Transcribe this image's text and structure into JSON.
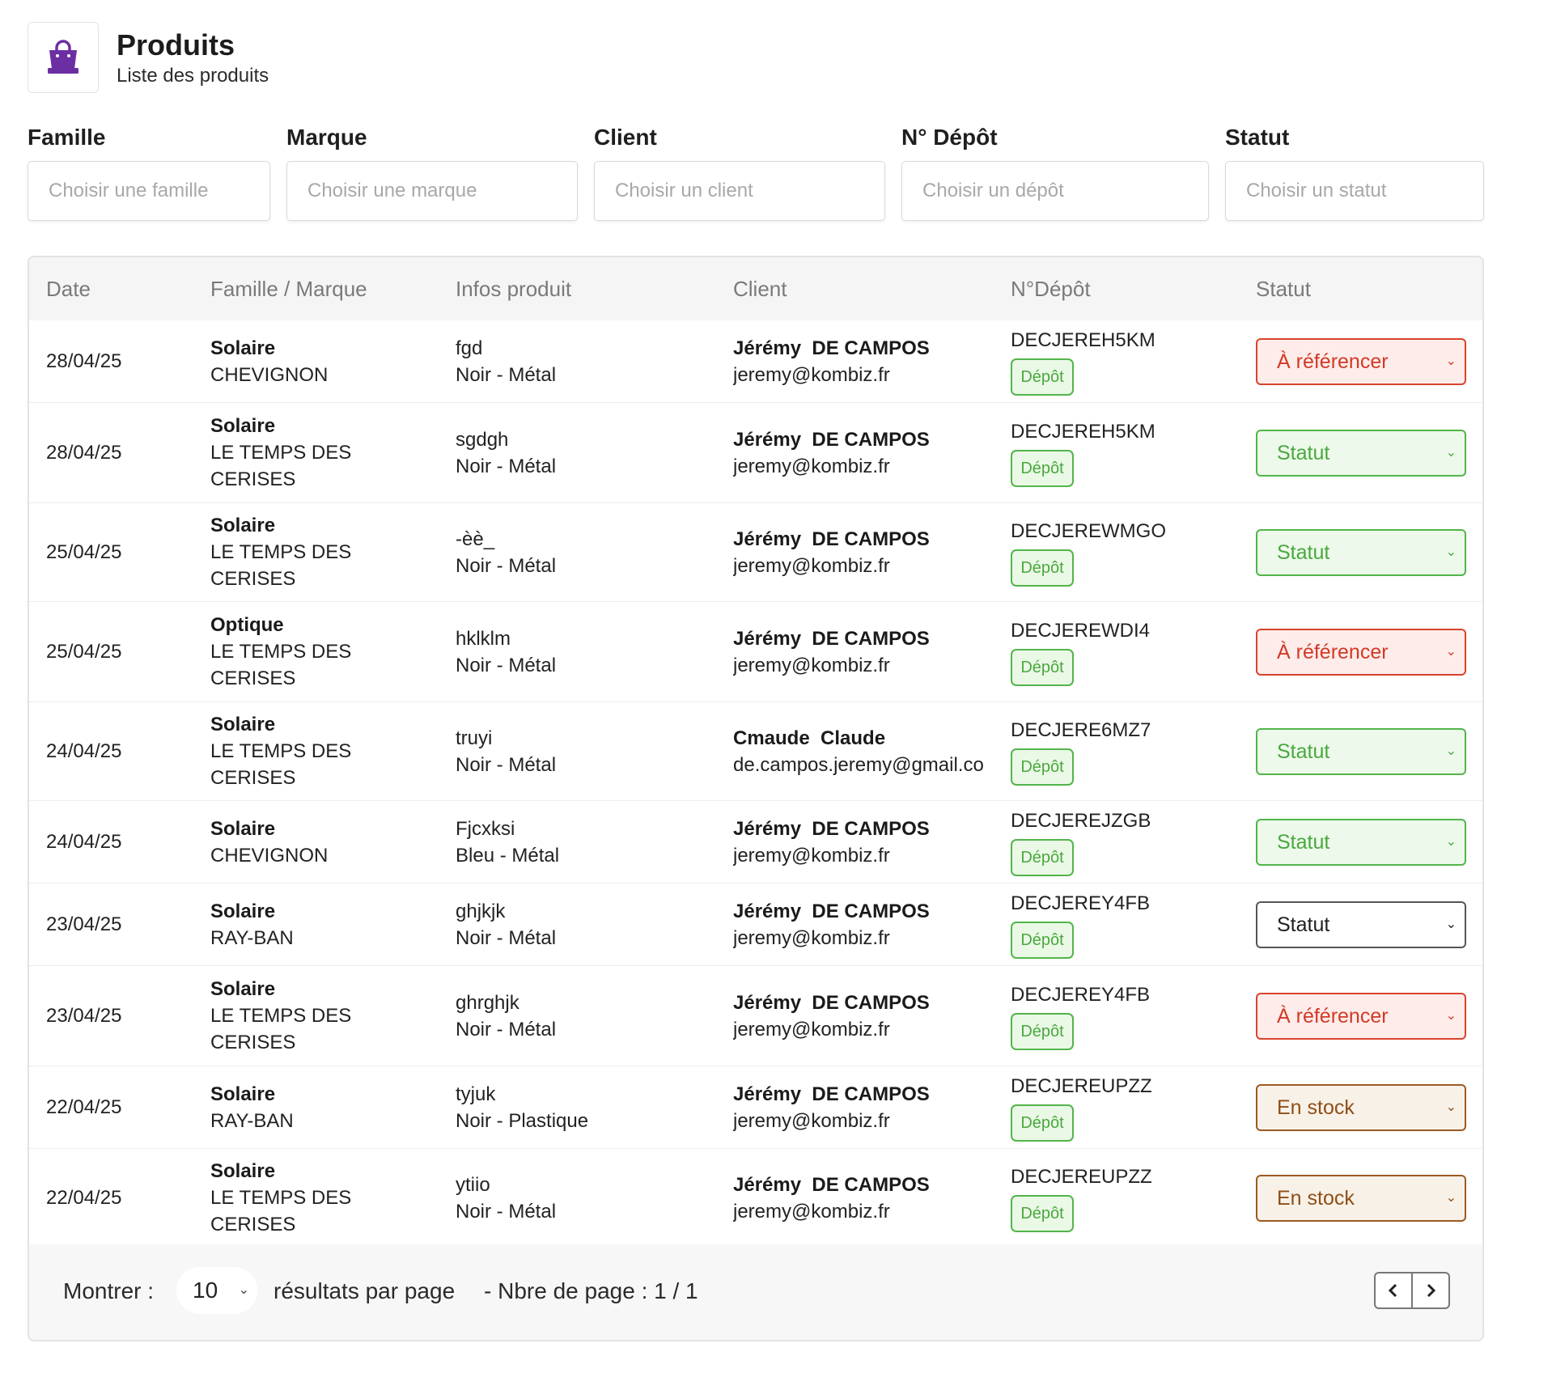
{
  "header": {
    "title": "Produits",
    "subtitle": "Liste des produits",
    "icon": "shopping-bag-icon",
    "icon_color": "#6b2fa3"
  },
  "filters": [
    {
      "label": "Famille",
      "placeholder": "Choisir une famille"
    },
    {
      "label": "Marque",
      "placeholder": "Choisir une marque"
    },
    {
      "label": "Client",
      "placeholder": "Choisir un client"
    },
    {
      "label": "N° Dépôt",
      "placeholder": "Choisir un dépôt"
    },
    {
      "label": "Statut",
      "placeholder": "Choisir un statut"
    }
  ],
  "table": {
    "columns": [
      "Date",
      "Famille / Marque",
      "Infos produit",
      "Client",
      "N°Dépôt",
      "Statut"
    ],
    "depot_badge": "Dépôt",
    "rows": [
      {
        "date": "28/04/25",
        "famille": "Solaire",
        "marque": "CHEVIGNON",
        "produit": "fgd",
        "details": "Noir - Métal",
        "client_name": "Jérémy  DE CAMPOS",
        "client_email": "jeremy@kombiz.fr",
        "depot": "DECJEREH5KM",
        "statut": "À référencer"
      },
      {
        "date": "28/04/25",
        "famille": "Solaire",
        "marque": "LE TEMPS DES CERISES",
        "produit": "sgdgh",
        "details": "Noir - Métal",
        "client_name": "Jérémy  DE CAMPOS",
        "client_email": "jeremy@kombiz.fr",
        "depot": "DECJEREH5KM",
        "statut": "Statut"
      },
      {
        "date": "25/04/25",
        "famille": "Solaire",
        "marque": "LE TEMPS DES CERISES",
        "produit": "-èè_",
        "details": "Noir - Métal",
        "client_name": "Jérémy  DE CAMPOS",
        "client_email": "jeremy@kombiz.fr",
        "depot": "DECJEREWMGO",
        "statut": "Statut"
      },
      {
        "date": "25/04/25",
        "famille": "Optique",
        "marque": "LE TEMPS DES CERISES",
        "produit": "hklklm",
        "details": "Noir - Métal",
        "client_name": "Jérémy  DE CAMPOS",
        "client_email": "jeremy@kombiz.fr",
        "depot": "DECJEREWDI4",
        "statut": "À référencer"
      },
      {
        "date": "24/04/25",
        "famille": "Solaire",
        "marque": "LE TEMPS DES CERISES",
        "produit": "truyi",
        "details": "Noir - Métal",
        "client_name": "Cmaude  Claude",
        "client_email": "de.campos.jeremy@gmail.co",
        "depot": "DECJERE6MZ7",
        "statut": "Statut"
      },
      {
        "date": "24/04/25",
        "famille": "Solaire",
        "marque": "CHEVIGNON",
        "produit": "Fjcxksi",
        "details": "Bleu - Métal",
        "client_name": "Jérémy  DE CAMPOS",
        "client_email": "jeremy@kombiz.fr",
        "depot": "DECJEREJZGB",
        "statut": "Statut"
      },
      {
        "date": "23/04/25",
        "famille": "Solaire",
        "marque": "RAY-BAN",
        "produit": "ghjkjk",
        "details": "Noir - Métal",
        "client_name": "Jérémy  DE CAMPOS",
        "client_email": "jeremy@kombiz.fr",
        "depot": "DECJEREY4FB",
        "statut": "Statut"
      },
      {
        "date": "23/04/25",
        "famille": "Solaire",
        "marque": "LE TEMPS DES CERISES",
        "produit": "ghrghjk",
        "details": "Noir - Métal",
        "client_name": "Jérémy  DE CAMPOS",
        "client_email": "jeremy@kombiz.fr",
        "depot": "DECJEREY4FB",
        "statut": "À référencer"
      },
      {
        "date": "22/04/25",
        "famille": "Solaire",
        "marque": "RAY-BAN",
        "produit": "tyjuk",
        "details": "Noir - Plastique",
        "client_name": "Jérémy  DE CAMPOS",
        "client_email": "jeremy@kombiz.fr",
        "depot": "DECJEREUPZZ",
        "statut": "En stock"
      },
      {
        "date": "22/04/25",
        "famille": "Solaire",
        "marque": "LE TEMPS DES CERISES",
        "produit": "ytiio",
        "details": "Noir - Métal",
        "client_name": "Jérémy  DE CAMPOS",
        "client_email": "jeremy@kombiz.fr",
        "depot": "DECJEREUPZZ",
        "statut": "En stock"
      }
    ]
  },
  "pagination": {
    "show_label": "Montrer :",
    "page_size": "10",
    "per_page_label": "résultats par page",
    "page_info": "- Nbre de page : 1 / 1",
    "prev_icon": "chevron-left-icon",
    "next_icon": "chevron-right-icon"
  },
  "colors": {
    "status_red": "#d23a26",
    "status_green": "#49a83f",
    "status_brown": "#8e4f17",
    "depot_green": "#4aa83e"
  }
}
